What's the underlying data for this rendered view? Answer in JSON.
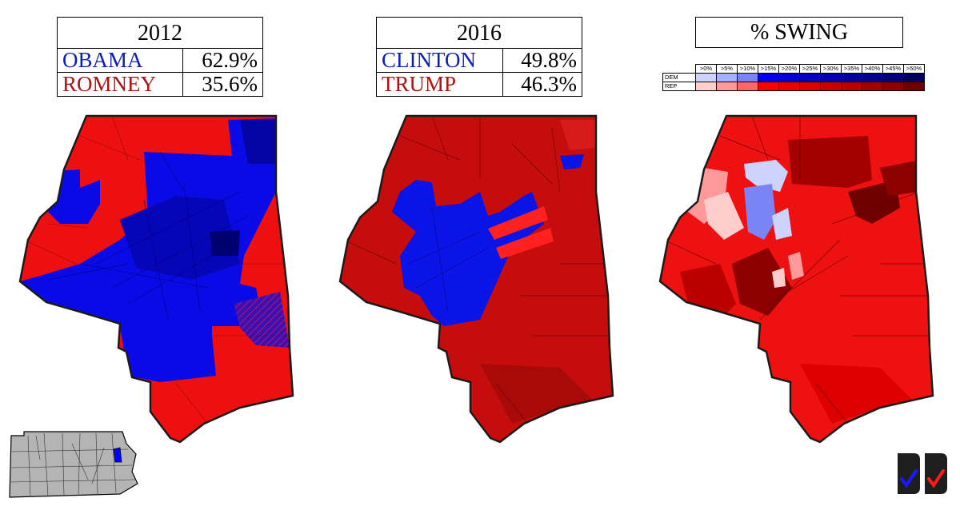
{
  "panel_2012": {
    "year": "2012",
    "dem_name": "OBAMA",
    "dem_pct": "62.9%",
    "rep_name": "ROMNEY",
    "rep_pct": "35.6%"
  },
  "panel_2016": {
    "year": "2016",
    "dem_name": "CLINTON",
    "dem_pct": "49.8%",
    "rep_name": "TRUMP",
    "rep_pct": "46.3%"
  },
  "panel_swing": {
    "title": "% SWING"
  },
  "legend": {
    "bins": [
      ">0%",
      ">5%",
      ">10%",
      ">15%",
      ">20%",
      ">25%",
      ">30%",
      ">35%",
      ">40%",
      ">45%",
      ">50%"
    ],
    "dem_label": "DEM",
    "rep_label": "REP",
    "dem_colors": [
      "#cdd3ff",
      "#a7afff",
      "#7a84f5",
      "#0000ee",
      "#0000d6",
      "#0000c2",
      "#0000ae",
      "#00009c",
      "#00008a",
      "#000078",
      "#00005f"
    ],
    "rep_colors": [
      "#ffcccc",
      "#ff9999",
      "#ff6666",
      "#ff0000",
      "#ee0000",
      "#dd0000",
      "#cc0000",
      "#bb0000",
      "#a30000",
      "#8c0000",
      "#6e0000"
    ]
  },
  "colors": {
    "dem_2012": "#0a0ae6",
    "rep_2012": "#ee1010",
    "dem_2016": "#0a14e6",
    "rep_2016": "#c50d0d",
    "swing_base": "#ee1111",
    "outline": "#1a1a1a"
  },
  "locator_map": {
    "state_fill": "#b4b4b4",
    "highlight_fill": "#0000ff"
  },
  "logo": {
    "icons": [
      "check-icon-blue",
      "check-icon-red"
    ],
    "colors": [
      "#1a1aff",
      "#ff1a1a"
    ]
  }
}
